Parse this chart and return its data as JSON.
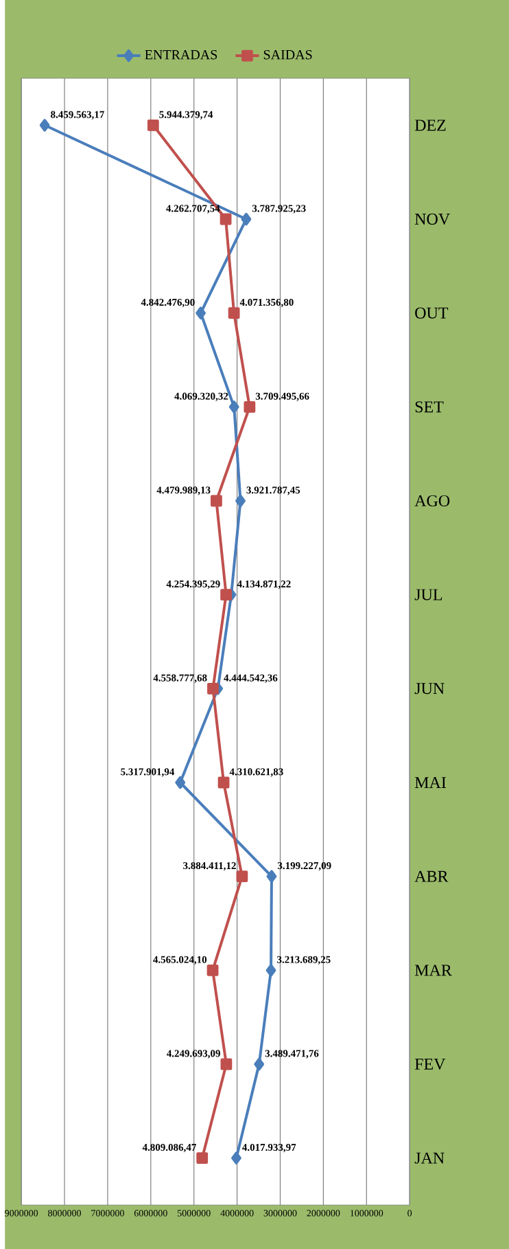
{
  "chart_data": {
    "type": "line",
    "orientation": "horizontal",
    "categories": [
      "DEZ",
      "NOV",
      "OUT",
      "SET",
      "AGO",
      "JUL",
      "JUN",
      "MAI",
      "ABR",
      "MAR",
      "FEV",
      "JAN"
    ],
    "series": [
      {
        "name": "ENTRADAS",
        "color": "#4a7ebb",
        "marker": "diamond",
        "values": [
          8459563.17,
          3787925.23,
          4842476.9,
          4069320.32,
          3921787.45,
          4134871.22,
          4444542.36,
          5317901.94,
          3199227.09,
          3213689.25,
          3489471.76,
          4017933.97
        ],
        "value_labels": [
          "8.459.563,17",
          "3.787.925,23",
          "4.842.476,90",
          "4.069.320,32",
          "3.921.787,45",
          "4.134.871,22",
          "4.444.542,36",
          "5.317.901,94",
          "3.199.227,09",
          "3.213.689,25",
          "3.489.471,76",
          "4.017.933,97"
        ]
      },
      {
        "name": "SAIDAS",
        "color": "#c0504d",
        "marker": "square",
        "values": [
          5944379.74,
          4262707.54,
          4071356.8,
          3709495.66,
          4479989.13,
          4254395.29,
          4558777.68,
          4310621.83,
          3884411.12,
          4565024.1,
          4249693.09,
          4809086.47
        ],
        "value_labels": [
          "5.944.379,74",
          "4.262.707,54",
          "4.071.356,80",
          "3.709.495,66",
          "4.479.989,13",
          "4.254.395,29",
          "4.558.777,68",
          "4.310.621,83",
          "3.884.411,12",
          "4.565.024,10",
          "4.249.693,09",
          "4.809.086,47"
        ]
      }
    ],
    "xlim": [
      9000000,
      0
    ],
    "xticks": [
      0,
      1000000,
      2000000,
      3000000,
      4000000,
      5000000,
      6000000,
      7000000,
      8000000,
      9000000
    ],
    "grid": "x",
    "legend": "top"
  }
}
